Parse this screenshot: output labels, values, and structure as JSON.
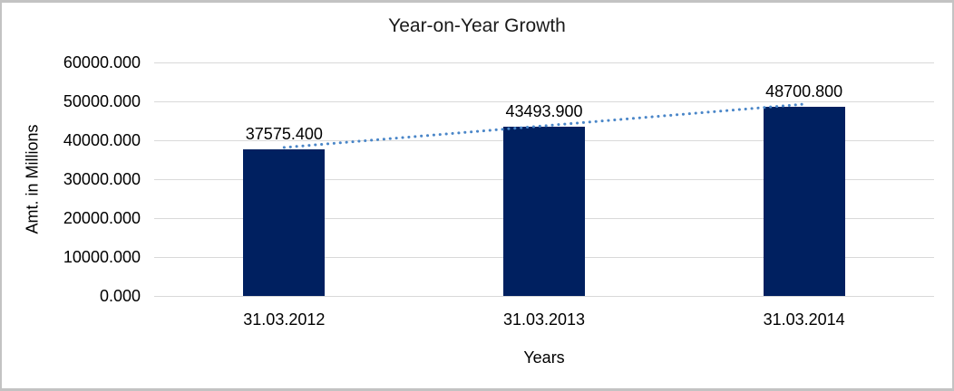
{
  "chart_data": {
    "type": "bar",
    "title": "Year-on-Year Growth",
    "xlabel": "Years",
    "ylabel": "Amt. in Millions",
    "categories": [
      "31.03.2012",
      "31.03.2013",
      "31.03.2014"
    ],
    "values": [
      37575.4,
      43493.9,
      48700.8
    ],
    "value_labels": [
      "37575.400",
      "43493.900",
      "48700.800"
    ],
    "y_tick_values": [
      0,
      10000,
      20000,
      30000,
      40000,
      50000,
      60000
    ],
    "y_tick_labels": [
      "0.000",
      "10000.000",
      "20000.000",
      "30000.000",
      "40000.000",
      "50000.000",
      "60000.000"
    ],
    "ylim": [
      0,
      60000
    ],
    "grid": true,
    "legend": "none",
    "trendline": {
      "type": "linear",
      "style": "dotted"
    },
    "colors": {
      "bar": "#002060",
      "trendline": "#4a86c8",
      "gridline": "#d9d9d9",
      "text": "#000000",
      "frame_border": "#c3c3c3",
      "background": "#ffffff"
    }
  }
}
